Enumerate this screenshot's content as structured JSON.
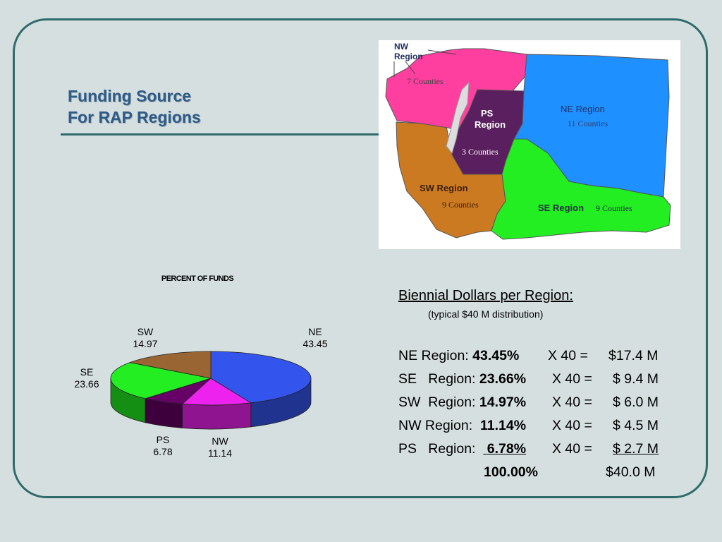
{
  "slide": {
    "title_line1": "Funding Source",
    "title_line2": "For RAP Regions"
  },
  "map": {
    "regions": [
      {
        "name": "NW Region",
        "counties": "7 Counties",
        "color": "#ff3fa0"
      },
      {
        "name": "PS Region",
        "counties": "3 Counties",
        "color": "#5a1f5e"
      },
      {
        "name": "NE Region",
        "counties": "11 Counties",
        "color": "#1e90ff"
      },
      {
        "name": "SW Region",
        "counties": "9 Counties",
        "color": "#cc7a22"
      },
      {
        "name": "SE Region",
        "counties": "9 Counties",
        "color": "#22ee22"
      }
    ],
    "nw_label_line1": "NW",
    "nw_label_line2": "Region",
    "ps_label_line1": "PS",
    "ps_label_line2": "Region"
  },
  "chart_data": {
    "type": "pie",
    "title": "PERCENT OF FUNDS",
    "slices": [
      {
        "name": "NE",
        "value": 43.45,
        "color": "#3355ee"
      },
      {
        "name": "NW",
        "value": 11.14,
        "color": "#ee22ee"
      },
      {
        "name": "PS",
        "value": 6.78,
        "color": "#660066"
      },
      {
        "name": "SE",
        "value": 23.66,
        "color": "#22ee22"
      },
      {
        "name": "SW",
        "value": 14.97,
        "color": "#996633"
      }
    ]
  },
  "dollars": {
    "heading": "Biennial Dollars per Region:",
    "subheading": "(typical $40 M distribution)",
    "rows": [
      {
        "region": "NE  Region:",
        "pct": "43.45%",
        "mult": "X 40  =",
        "amount": "$17.4 M"
      },
      {
        "region": "SE   Region:",
        "pct": "23.66%",
        "mult": "X 40 =",
        "amount": "$ 9.4 M"
      },
      {
        "region": "SW  Region:",
        "pct": "14.97%",
        "mult": "X 40 =",
        "amount": "$ 6.0 M"
      },
      {
        "region": "NW Region:",
        "pct": "11.14%",
        "mult": "X 40 =",
        "amount": "$ 4.5 M"
      },
      {
        "region": "PS   Region:",
        "pct": "6.78%",
        "mult": "X 40 =",
        "amount": "$ 2.7 M"
      }
    ],
    "total_pct": "100.00%",
    "total_amount": "$40.0 M"
  }
}
